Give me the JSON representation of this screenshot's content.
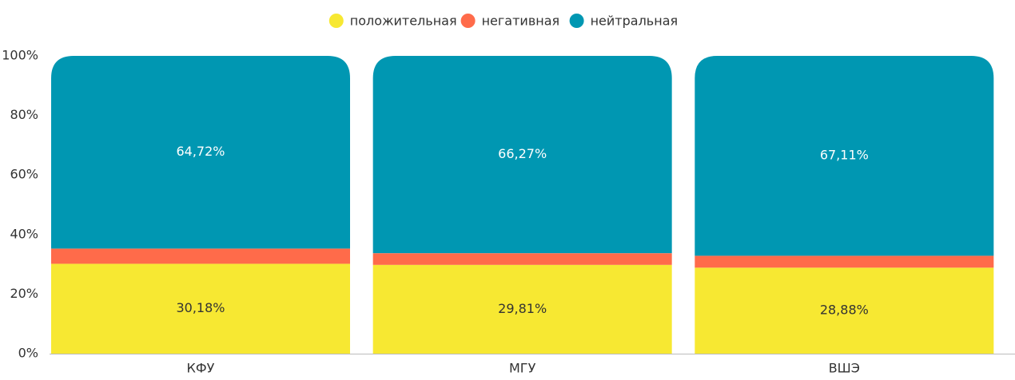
{
  "chart_data": {
    "type": "stacked_bar",
    "categories": [
      "КФУ",
      "МГУ",
      "ВШЭ"
    ],
    "series": [
      {
        "name": "положительная",
        "color": "#f7e832",
        "values": [
          30.18,
          29.81,
          28.88
        ],
        "value_labels": [
          "30,18%",
          "29,81%",
          "28,88%"
        ],
        "label_color": "#333333"
      },
      {
        "name": "негативная",
        "color": "#ff6b4a",
        "values": [
          5.1,
          3.92,
          4.01
        ]
      },
      {
        "name": "нейтральная",
        "color": "#0097b2",
        "values": [
          64.72,
          66.27,
          67.11
        ],
        "value_labels": [
          "64,72%",
          "66,27%",
          "67,11%"
        ],
        "label_color": "#ffffff"
      }
    ],
    "ylim": [
      0,
      100
    ],
    "yticks": [
      {
        "value": 0,
        "label": "0%"
      },
      {
        "value": 20,
        "label": "20%"
      },
      {
        "value": 40,
        "label": "40%"
      },
      {
        "value": 60,
        "label": "60%"
      },
      {
        "value": 80,
        "label": "80%"
      },
      {
        "value": 100,
        "label": "100%"
      }
    ],
    "legend": "top"
  }
}
